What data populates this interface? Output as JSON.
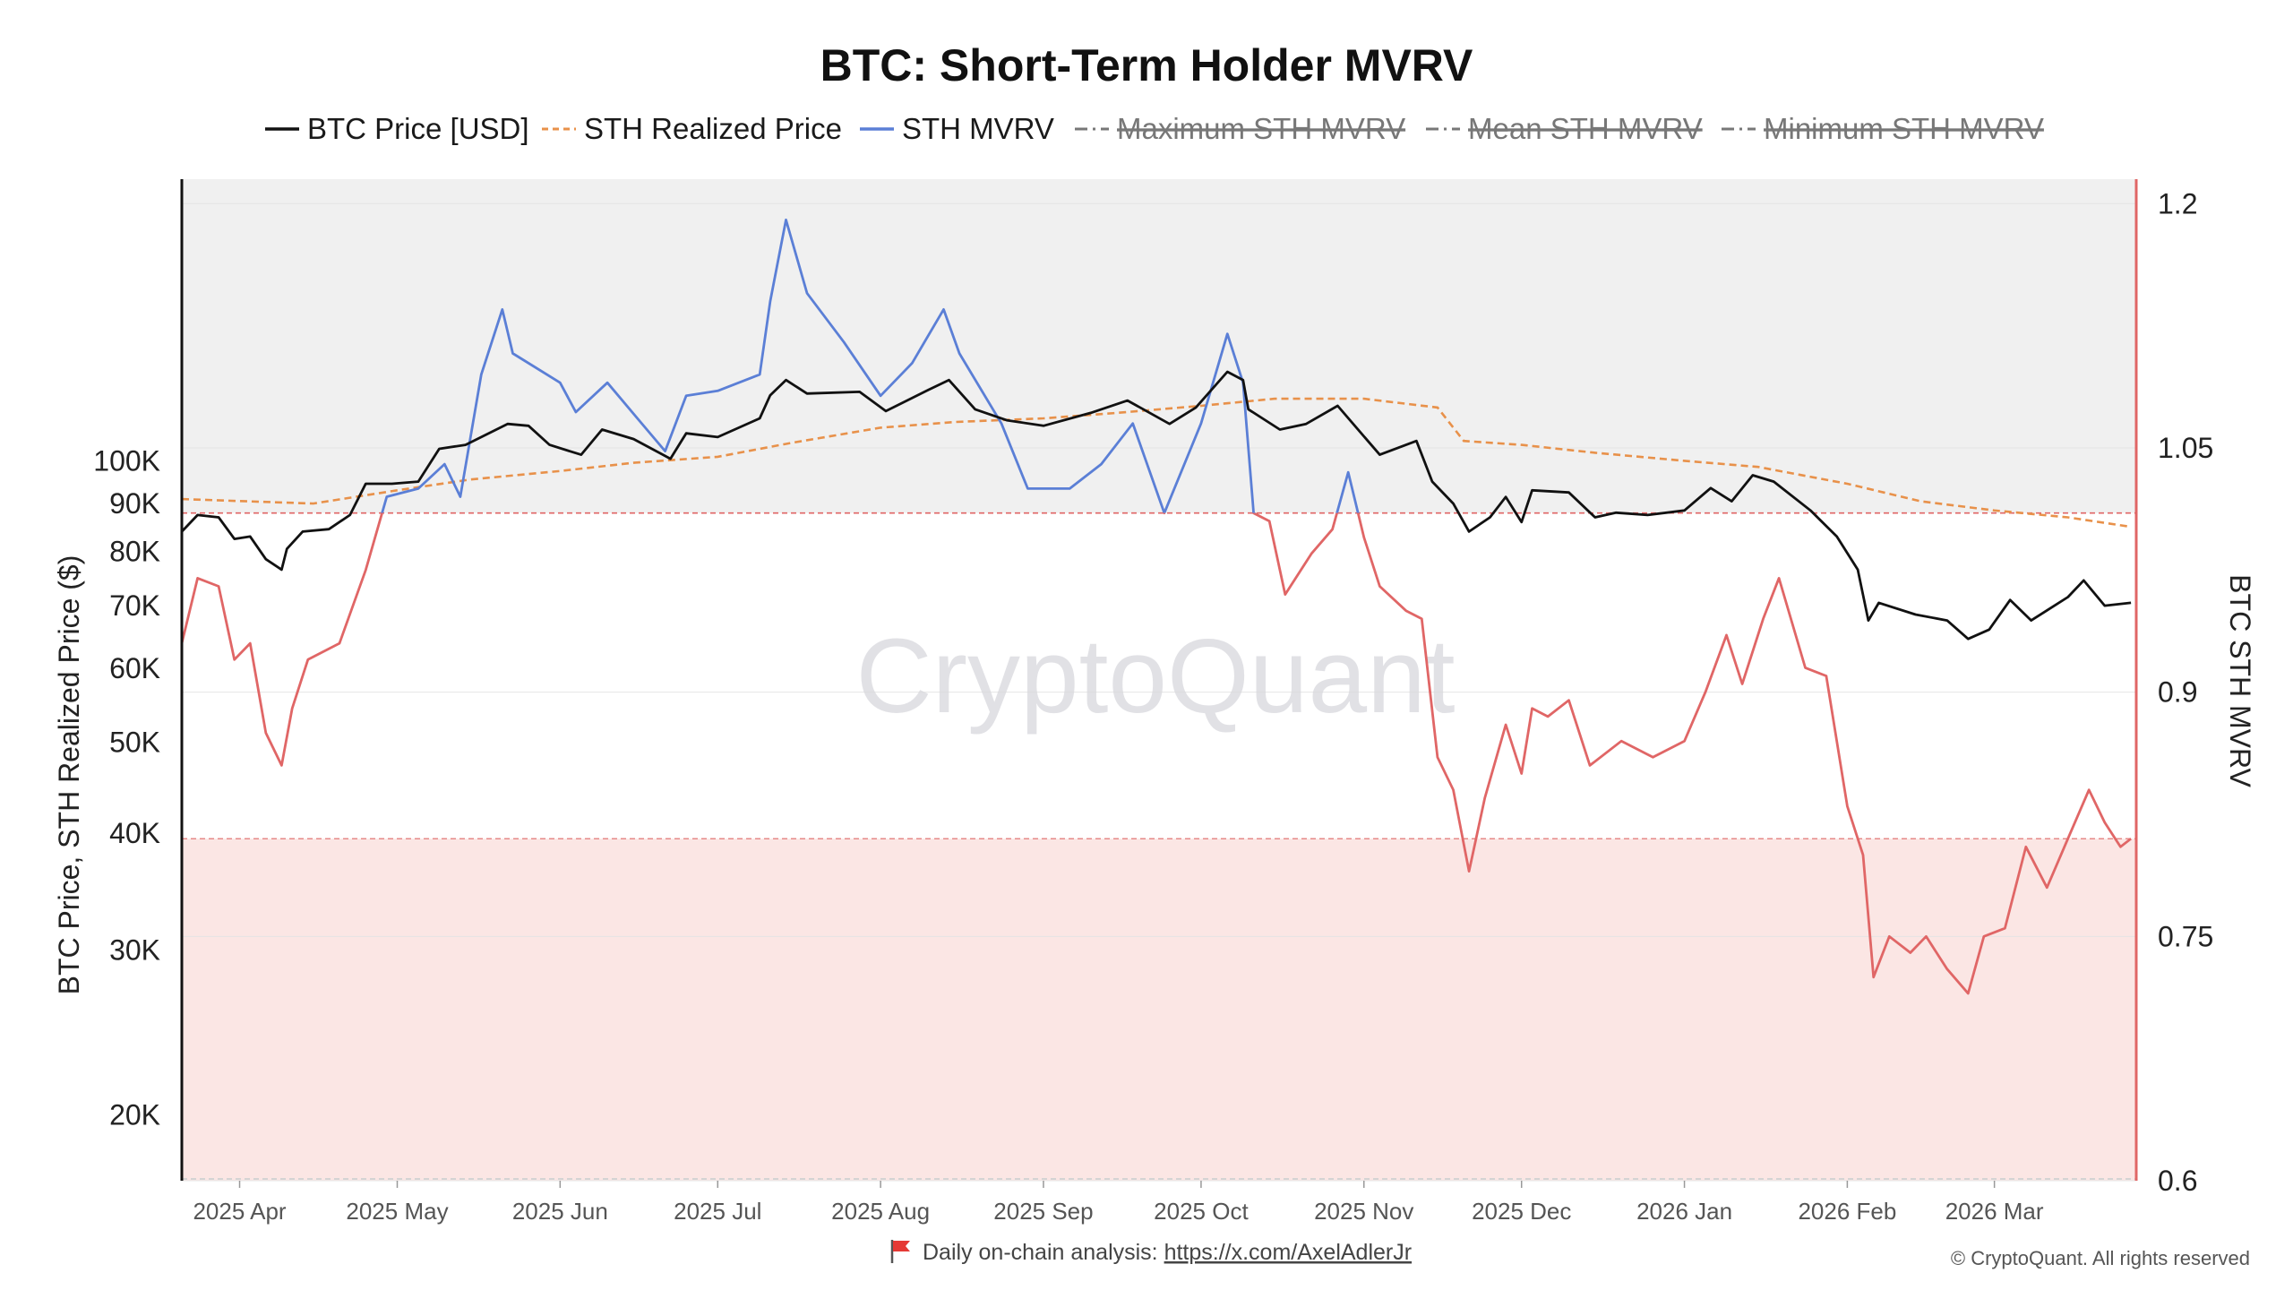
{
  "chart_data": {
    "type": "line",
    "title": "BTC: Short-Term Holder MVRV",
    "y_left_label": "BTC Price, STH Realized Price ($)",
    "y_right_label": "BTC STH MVRV",
    "y_left_scale": "log",
    "y_left_range": [
      17000,
      200000
    ],
    "y_left_ticks": [
      20000,
      30000,
      40000,
      50000,
      60000,
      70000,
      80000,
      90000,
      100000
    ],
    "y_left_tick_labels": [
      "20K",
      "30K",
      "40K",
      "50K",
      "60K",
      "70K",
      "80K",
      "90K",
      "100K"
    ],
    "y_right_range": [
      0.6,
      1.215
    ],
    "y_right_ticks": [
      0.6,
      0.75,
      0.9,
      1.05,
      1.2
    ],
    "y_right_tick_labels": [
      "0.6",
      "0.75",
      "0.9",
      "1.05",
      "1.2"
    ],
    "x_range": [
      "2025-03-21",
      "2026-03-28"
    ],
    "x_ticks": [
      "2025-04-01",
      "2025-05-01",
      "2025-06-01",
      "2025-07-01",
      "2025-08-01",
      "2025-09-01",
      "2025-10-01",
      "2025-11-01",
      "2025-12-01",
      "2026-01-01",
      "2026-02-01",
      "2026-03-01"
    ],
    "x_tick_labels": [
      "2025 Apr",
      "2025 May",
      "2025 Jun",
      "2025 Jul",
      "2025 Aug",
      "2025 Sep",
      "2025 Oct",
      "2025 Nov",
      "2025 Dec",
      "2026 Jan",
      "2026 Feb",
      "2026 Mar"
    ],
    "grid": true,
    "legend_position": "top",
    "zones": {
      "upper_threshold": 1.01,
      "lower_threshold": 0.81,
      "upper_zone_color": "#f0f0f0",
      "lower_zone_color": "#fbe6e4",
      "threshold_line_color": "#e06666"
    },
    "series": [
      {
        "name": "BTC Price [USD]",
        "axis": "left",
        "style": "solid",
        "color": "#111111",
        "points": [
          [
            "2025-03-21",
            84000
          ],
          [
            "2025-03-24",
            87500
          ],
          [
            "2025-03-28",
            87000
          ],
          [
            "2025-03-31",
            82500
          ],
          [
            "2025-04-03",
            83000
          ],
          [
            "2025-04-06",
            78500
          ],
          [
            "2025-04-09",
            76500
          ],
          [
            "2025-04-10",
            80500
          ],
          [
            "2025-04-13",
            84000
          ],
          [
            "2025-04-18",
            84500
          ],
          [
            "2025-04-22",
            87500
          ],
          [
            "2025-04-25",
            94500
          ],
          [
            "2025-04-30",
            94500
          ],
          [
            "2025-05-05",
            95000
          ],
          [
            "2025-05-09",
            103000
          ],
          [
            "2025-05-14",
            104000
          ],
          [
            "2025-05-22",
            109500
          ],
          [
            "2025-05-26",
            109000
          ],
          [
            "2025-05-30",
            104000
          ],
          [
            "2025-06-05",
            101500
          ],
          [
            "2025-06-09",
            108000
          ],
          [
            "2025-06-15",
            105500
          ],
          [
            "2025-06-22",
            100500
          ],
          [
            "2025-06-25",
            107000
          ],
          [
            "2025-07-01",
            106000
          ],
          [
            "2025-07-09",
            111000
          ],
          [
            "2025-07-11",
            117500
          ],
          [
            "2025-07-14",
            122000
          ],
          [
            "2025-07-18",
            118000
          ],
          [
            "2025-07-28",
            118500
          ],
          [
            "2025-08-02",
            113000
          ],
          [
            "2025-08-10",
            119000
          ],
          [
            "2025-08-14",
            122000
          ],
          [
            "2025-08-19",
            113500
          ],
          [
            "2025-08-25",
            110500
          ],
          [
            "2025-09-01",
            109000
          ],
          [
            "2025-09-10",
            112500
          ],
          [
            "2025-09-17",
            116000
          ],
          [
            "2025-09-25",
            109500
          ],
          [
            "2025-09-30",
            114000
          ],
          [
            "2025-10-06",
            124500
          ],
          [
            "2025-10-09",
            122000
          ],
          [
            "2025-10-10",
            113500
          ],
          [
            "2025-10-16",
            108000
          ],
          [
            "2025-10-21",
            109500
          ],
          [
            "2025-10-27",
            114500
          ],
          [
            "2025-11-04",
            101500
          ],
          [
            "2025-11-11",
            105000
          ],
          [
            "2025-11-14",
            95000
          ],
          [
            "2025-11-18",
            90000
          ],
          [
            "2025-11-21",
            84000
          ],
          [
            "2025-11-25",
            87000
          ],
          [
            "2025-11-28",
            91500
          ],
          [
            "2025-12-01",
            86000
          ],
          [
            "2025-12-03",
            93000
          ],
          [
            "2025-12-10",
            92500
          ],
          [
            "2025-12-15",
            87000
          ],
          [
            "2025-12-19",
            88000
          ],
          [
            "2025-12-25",
            87500
          ],
          [
            "2026-01-01",
            88500
          ],
          [
            "2026-01-06",
            93500
          ],
          [
            "2026-01-10",
            90500
          ],
          [
            "2026-01-14",
            96500
          ],
          [
            "2026-01-18",
            95000
          ],
          [
            "2026-01-25",
            88500
          ],
          [
            "2026-01-30",
            83000
          ],
          [
            "2026-02-03",
            76500
          ],
          [
            "2026-02-05",
            67500
          ],
          [
            "2026-02-07",
            70500
          ],
          [
            "2026-02-14",
            68500
          ],
          [
            "2026-02-20",
            67500
          ],
          [
            "2026-02-24",
            64500
          ],
          [
            "2026-02-28",
            66000
          ],
          [
            "2026-03-04",
            71000
          ],
          [
            "2026-03-08",
            67500
          ],
          [
            "2026-03-15",
            71500
          ],
          [
            "2026-03-18",
            74500
          ],
          [
            "2026-03-22",
            70000
          ],
          [
            "2026-03-27",
            70500
          ]
        ]
      },
      {
        "name": "STH Realized Price",
        "axis": "left",
        "style": "dashed",
        "color": "#e8914a",
        "points": [
          [
            "2025-03-21",
            91000
          ],
          [
            "2025-04-15",
            90000
          ],
          [
            "2025-05-01",
            93000
          ],
          [
            "2025-05-15",
            95500
          ],
          [
            "2025-06-01",
            97500
          ],
          [
            "2025-06-15",
            99500
          ],
          [
            "2025-07-01",
            101000
          ],
          [
            "2025-07-15",
            104500
          ],
          [
            "2025-08-01",
            108500
          ],
          [
            "2025-08-15",
            110000
          ],
          [
            "2025-09-01",
            111000
          ],
          [
            "2025-09-15",
            112500
          ],
          [
            "2025-10-01",
            114500
          ],
          [
            "2025-10-15",
            116500
          ],
          [
            "2025-11-01",
            116500
          ],
          [
            "2025-11-15",
            114000
          ],
          [
            "2025-11-20",
            105000
          ],
          [
            "2025-12-01",
            104000
          ],
          [
            "2025-12-15",
            102000
          ],
          [
            "2026-01-01",
            100000
          ],
          [
            "2026-01-15",
            98500
          ],
          [
            "2026-02-01",
            94500
          ],
          [
            "2026-02-15",
            90500
          ],
          [
            "2026-03-01",
            88500
          ],
          [
            "2026-03-15",
            87000
          ],
          [
            "2026-03-27",
            85000
          ]
        ]
      },
      {
        "name": "STH MVRV",
        "axis": "right",
        "style": "solid",
        "color_above": "#5b7fd6",
        "color_below": "#e06666",
        "points": [
          [
            "2025-03-21",
            0.93
          ],
          [
            "2025-03-24",
            0.97
          ],
          [
            "2025-03-28",
            0.965
          ],
          [
            "2025-03-31",
            0.92
          ],
          [
            "2025-04-03",
            0.93
          ],
          [
            "2025-04-06",
            0.875
          ],
          [
            "2025-04-09",
            0.855
          ],
          [
            "2025-04-11",
            0.89
          ],
          [
            "2025-04-14",
            0.92
          ],
          [
            "2025-04-20",
            0.93
          ],
          [
            "2025-04-25",
            0.975
          ],
          [
            "2025-04-29",
            1.02
          ],
          [
            "2025-05-05",
            1.025
          ],
          [
            "2025-05-10",
            1.04
          ],
          [
            "2025-05-13",
            1.02
          ],
          [
            "2025-05-17",
            1.095
          ],
          [
            "2025-05-21",
            1.135
          ],
          [
            "2025-05-23",
            1.108
          ],
          [
            "2025-06-01",
            1.09
          ],
          [
            "2025-06-04",
            1.072
          ],
          [
            "2025-06-10",
            1.09
          ],
          [
            "2025-06-16",
            1.067
          ],
          [
            "2025-06-21",
            1.048
          ],
          [
            "2025-06-25",
            1.082
          ],
          [
            "2025-07-01",
            1.085
          ],
          [
            "2025-07-09",
            1.095
          ],
          [
            "2025-07-11",
            1.14
          ],
          [
            "2025-07-14",
            1.19
          ],
          [
            "2025-07-18",
            1.145
          ],
          [
            "2025-07-25",
            1.115
          ],
          [
            "2025-08-01",
            1.082
          ],
          [
            "2025-08-07",
            1.102
          ],
          [
            "2025-08-13",
            1.135
          ],
          [
            "2025-08-16",
            1.108
          ],
          [
            "2025-08-24",
            1.065
          ],
          [
            "2025-08-29",
            1.025
          ],
          [
            "2025-09-06",
            1.025
          ],
          [
            "2025-09-12",
            1.04
          ],
          [
            "2025-09-18",
            1.065
          ],
          [
            "2025-09-24",
            1.01
          ],
          [
            "2025-10-01",
            1.065
          ],
          [
            "2025-10-06",
            1.12
          ],
          [
            "2025-10-09",
            1.09
          ],
          [
            "2025-10-11",
            1.01
          ],
          [
            "2025-10-14",
            1.005
          ],
          [
            "2025-10-17",
            0.96
          ],
          [
            "2025-10-22",
            0.985
          ],
          [
            "2025-10-26",
            1.0
          ],
          [
            "2025-10-29",
            1.035
          ],
          [
            "2025-11-01",
            0.995
          ],
          [
            "2025-11-04",
            0.965
          ],
          [
            "2025-11-09",
            0.95
          ],
          [
            "2025-11-12",
            0.945
          ],
          [
            "2025-11-15",
            0.86
          ],
          [
            "2025-11-18",
            0.84
          ],
          [
            "2025-11-21",
            0.79
          ],
          [
            "2025-11-24",
            0.835
          ],
          [
            "2025-11-28",
            0.88
          ],
          [
            "2025-12-01",
            0.85
          ],
          [
            "2025-12-03",
            0.89
          ],
          [
            "2025-12-06",
            0.885
          ],
          [
            "2025-12-10",
            0.895
          ],
          [
            "2025-12-14",
            0.855
          ],
          [
            "2025-12-20",
            0.87
          ],
          [
            "2025-12-26",
            0.86
          ],
          [
            "2026-01-01",
            0.87
          ],
          [
            "2026-01-05",
            0.9
          ],
          [
            "2026-01-09",
            0.935
          ],
          [
            "2026-01-12",
            0.905
          ],
          [
            "2026-01-16",
            0.945
          ],
          [
            "2026-01-19",
            0.97
          ],
          [
            "2026-01-24",
            0.915
          ],
          [
            "2026-01-28",
            0.91
          ],
          [
            "2026-02-01",
            0.83
          ],
          [
            "2026-02-04",
            0.8
          ],
          [
            "2026-02-06",
            0.725
          ],
          [
            "2026-02-09",
            0.75
          ],
          [
            "2026-02-13",
            0.74
          ],
          [
            "2026-02-16",
            0.75
          ],
          [
            "2026-02-20",
            0.73
          ],
          [
            "2026-02-24",
            0.715
          ],
          [
            "2026-02-27",
            0.75
          ],
          [
            "2026-03-03",
            0.755
          ],
          [
            "2026-03-07",
            0.805
          ],
          [
            "2026-03-11",
            0.78
          ],
          [
            "2026-03-15",
            0.81
          ],
          [
            "2026-03-19",
            0.84
          ],
          [
            "2026-03-22",
            0.82
          ],
          [
            "2026-03-25",
            0.805
          ],
          [
            "2026-03-27",
            0.81
          ]
        ]
      },
      {
        "name": "Maximum STH MVRV",
        "axis": "right",
        "style": "dash-dot",
        "color": "#777777",
        "hidden": true
      },
      {
        "name": "Mean STH MVRV",
        "axis": "right",
        "style": "dash-dot",
        "color": "#777777",
        "hidden": true
      },
      {
        "name": "Minimum STH MVRV",
        "axis": "right",
        "style": "dash-dot",
        "color": "#777777",
        "hidden": true
      }
    ],
    "watermark": "CryptoQuant",
    "footer": {
      "flag_icon": "red-flag-icon",
      "text": "Daily on-chain analysis: ",
      "link": "https://x.com/AxelAdlerJr"
    },
    "copyright": "© CryptoQuant. All rights reserved"
  }
}
